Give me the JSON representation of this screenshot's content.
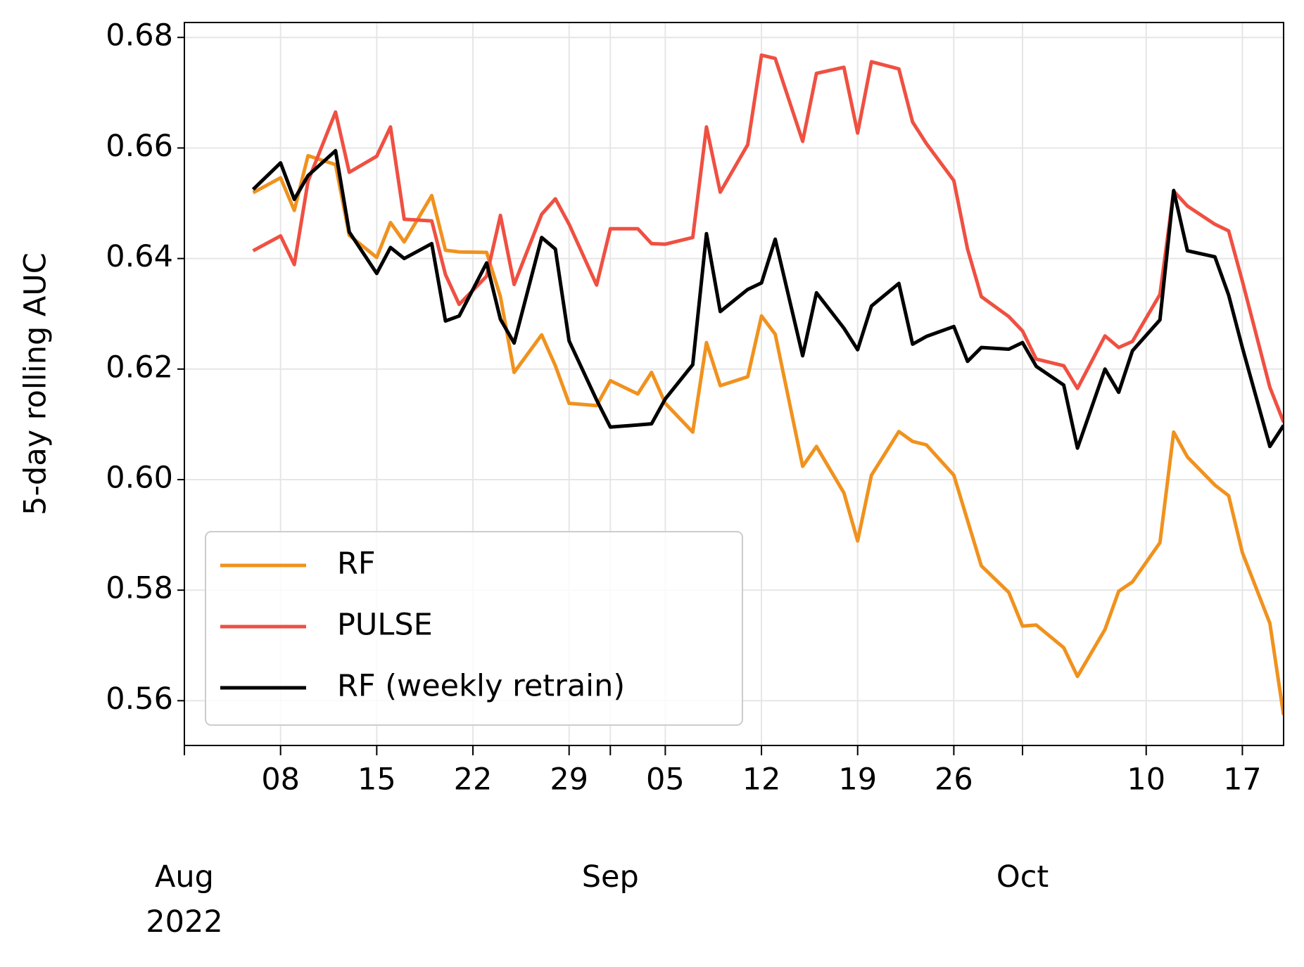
{
  "chart_data": {
    "type": "line",
    "ylabel": "5-day rolling AUC",
    "x": [
      "2022-08-06",
      "2022-08-08",
      "2022-08-09",
      "2022-08-10",
      "2022-08-12",
      "2022-08-13",
      "2022-08-15",
      "2022-08-16",
      "2022-08-17",
      "2022-08-19",
      "2022-08-20",
      "2022-08-21",
      "2022-08-23",
      "2022-08-24",
      "2022-08-25",
      "2022-08-27",
      "2022-08-28",
      "2022-08-29",
      "2022-08-31",
      "2022-09-01",
      "2022-09-03",
      "2022-09-04",
      "2022-09-05",
      "2022-09-07",
      "2022-09-08",
      "2022-09-09",
      "2022-09-11",
      "2022-09-12",
      "2022-09-13",
      "2022-09-15",
      "2022-09-16",
      "2022-09-18",
      "2022-09-19",
      "2022-09-20",
      "2022-09-22",
      "2022-09-23",
      "2022-09-24",
      "2022-09-26",
      "2022-09-27",
      "2022-09-28",
      "2022-09-30",
      "2022-10-01",
      "2022-10-02",
      "2022-10-04",
      "2022-10-05",
      "2022-10-07",
      "2022-10-08",
      "2022-10-09",
      "2022-10-11",
      "2022-10-12",
      "2022-10-13",
      "2022-10-15",
      "2022-10-16",
      "2022-10-17",
      "2022-10-19",
      "2022-10-20"
    ],
    "series": [
      {
        "name": "RF",
        "color": "#f0921e",
        "values": [
          0.6519,
          0.6546,
          0.6487,
          0.6586,
          0.657,
          0.6442,
          0.6402,
          0.6465,
          0.643,
          0.6514,
          0.6415,
          0.6412,
          0.6411,
          0.6331,
          0.6194,
          0.6262,
          0.6206,
          0.6138,
          0.6134,
          0.6179,
          0.6155,
          0.6194,
          0.6138,
          0.6086,
          0.6248,
          0.617,
          0.6186,
          0.6296,
          0.6263,
          0.6024,
          0.606,
          0.5976,
          0.5889,
          0.6008,
          0.6087,
          0.6069,
          0.6063,
          0.6008,
          0.5926,
          0.5844,
          0.5796,
          0.5735,
          0.5737,
          0.5696,
          0.5644,
          0.5729,
          0.5798,
          0.5815,
          0.5886,
          0.6086,
          0.6041,
          0.599,
          0.5971,
          0.5868,
          0.574,
          0.5574
        ]
      },
      {
        "name": "PULSE",
        "color": "#ef5042",
        "values": [
          0.6414,
          0.6441,
          0.6389,
          0.654,
          0.6665,
          0.6556,
          0.6585,
          0.6638,
          0.6471,
          0.6468,
          0.6371,
          0.6317,
          0.6368,
          0.6478,
          0.6353,
          0.648,
          0.6508,
          0.6462,
          0.6352,
          0.6454,
          0.6454,
          0.6427,
          0.6426,
          0.6438,
          0.6638,
          0.652,
          0.6606,
          0.6768,
          0.6762,
          0.6612,
          0.6735,
          0.6746,
          0.6627,
          0.6756,
          0.6743,
          0.6647,
          0.6608,
          0.6541,
          0.6417,
          0.6331,
          0.6295,
          0.6269,
          0.6218,
          0.6206,
          0.6165,
          0.626,
          0.6239,
          0.625,
          0.6335,
          0.6522,
          0.6495,
          0.6462,
          0.645,
          0.6359,
          0.6167,
          0.6104
        ]
      },
      {
        "name": "RF (weekly retrain)",
        "color": "#000000",
        "values": [
          0.6525,
          0.6573,
          0.6507,
          0.655,
          0.6595,
          0.6448,
          0.6373,
          0.642,
          0.64,
          0.6427,
          0.6287,
          0.6296,
          0.6392,
          0.629,
          0.6247,
          0.6438,
          0.6417,
          0.6251,
          0.6144,
          0.6095,
          0.6099,
          0.6101,
          0.6146,
          0.6208,
          0.6445,
          0.6304,
          0.6344,
          0.6356,
          0.6435,
          0.6224,
          0.6338,
          0.6274,
          0.6235,
          0.6314,
          0.6355,
          0.6245,
          0.6259,
          0.6277,
          0.6214,
          0.6239,
          0.6236,
          0.6248,
          0.6205,
          0.6171,
          0.6057,
          0.62,
          0.6158,
          0.6233,
          0.6289,
          0.6523,
          0.6414,
          0.6403,
          0.6334,
          0.6239,
          0.606,
          0.6098
        ]
      }
    ],
    "xlim": [
      "2022-08-01",
      "2022-10-20"
    ],
    "xticks": [
      {
        "value": "2022-08-01",
        "label": "Aug 2022"
      },
      {
        "value": "2022-08-08",
        "label": "08"
      },
      {
        "value": "2022-08-15",
        "label": "15"
      },
      {
        "value": "2022-08-22",
        "label": "22"
      },
      {
        "value": "2022-08-29",
        "label": "29"
      },
      {
        "value": "2022-09-01",
        "label": "Sep"
      },
      {
        "value": "2022-09-05",
        "label": "05"
      },
      {
        "value": "2022-09-12",
        "label": "12"
      },
      {
        "value": "2022-09-19",
        "label": "19"
      },
      {
        "value": "2022-09-26",
        "label": "26"
      },
      {
        "value": "2022-10-01",
        "label": "Oct"
      },
      {
        "value": "2022-10-10",
        "label": "10"
      },
      {
        "value": "2022-10-17",
        "label": "17"
      }
    ],
    "ylim": [
      0.5519,
      0.6827
    ],
    "yticks": [
      {
        "value": 0.56,
        "label": "0.56"
      },
      {
        "value": 0.58,
        "label": "0.58"
      },
      {
        "value": 0.6,
        "label": "0.60"
      },
      {
        "value": 0.62,
        "label": "0.62"
      },
      {
        "value": 0.64,
        "label": "0.64"
      },
      {
        "value": 0.66,
        "label": "0.66"
      },
      {
        "value": 0.68,
        "label": "0.68"
      }
    ],
    "grid": true,
    "legend": "lower left"
  }
}
